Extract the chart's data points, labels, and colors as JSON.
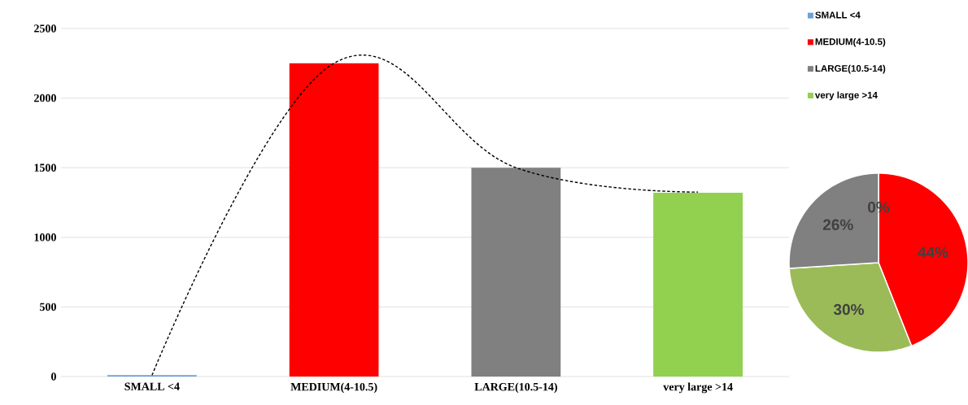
{
  "chart_data": [
    {
      "type": "bar",
      "categories": [
        "SMALL <4",
        "MEDIUM(4-10.5)",
        "LARGE(10.5-14)",
        "very  large >14"
      ],
      "ylim": [
        0,
        2500
      ],
      "yticks": [
        0,
        500,
        1000,
        1500,
        2000,
        2500
      ],
      "grid": "y",
      "legend": "top right",
      "series": [
        {
          "type": "bar",
          "name": "SMALL <4",
          "color": "#6f9fd8",
          "values": [
            10,
            null,
            null,
            null
          ]
        },
        {
          "type": "bar",
          "name": "MEDIUM(4-10.5)",
          "color": "#ff0000",
          "values": [
            null,
            2250,
            null,
            null
          ]
        },
        {
          "type": "bar",
          "name": "LARGE(10.5-14)",
          "color": "#808080",
          "values": [
            null,
            null,
            1500,
            null
          ]
        },
        {
          "type": "bar",
          "name": "very  large >14",
          "color": "#92d050",
          "values": [
            null,
            null,
            null,
            1320
          ]
        },
        {
          "type": "line",
          "values": [
            10,
            2250,
            1500,
            1325
          ],
          "color": "#000000",
          "line_style": "dashed"
        }
      ]
    },
    {
      "type": "pie",
      "categories": [
        null,
        null,
        null,
        null
      ],
      "values": [
        0,
        44,
        30,
        26
      ],
      "colors": [
        "#6f9fd8",
        "#ff0000",
        "#9bbb59",
        "#808080"
      ],
      "value_labels": [
        "0%",
        "44%",
        "30%",
        "26%"
      ]
    }
  ]
}
